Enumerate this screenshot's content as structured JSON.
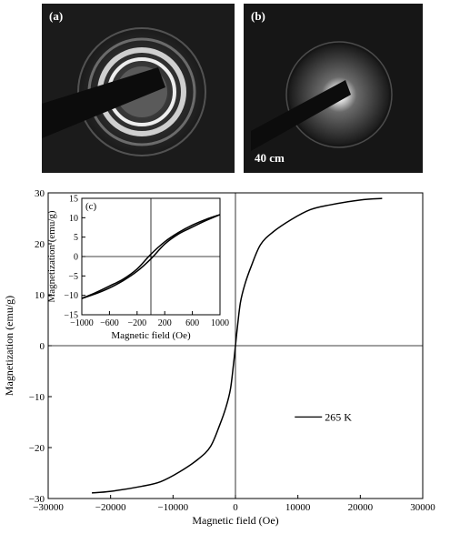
{
  "panels": {
    "a": {
      "label": "(a)"
    },
    "b": {
      "label": "(b)",
      "scale_text": "40 cm"
    }
  },
  "chart_data": [
    {
      "type": "line",
      "panel_label": "",
      "xlabel": "Magnetic field (Oe)",
      "ylabel": "Magnetization (emu/g)",
      "xlim": [
        -30000,
        30000
      ],
      "ylim": [
        -30,
        30
      ],
      "xticks": [
        -30000,
        -20000,
        -10000,
        0,
        10000,
        20000,
        30000
      ],
      "yticks": [
        -30,
        -20,
        -10,
        0,
        10,
        20,
        30
      ],
      "xtick_labels": [
        "−30000",
        "−20000",
        "−10000",
        "0",
        "10000",
        "20000",
        "30000"
      ],
      "ytick_labels": [
        "−30",
        "−20",
        "−10",
        "0",
        "10",
        "20",
        "30"
      ],
      "legend": {
        "label": "265 K",
        "placement": "right"
      },
      "series": [
        {
          "name": "265 K",
          "x": [
            -23000,
            -20000,
            -15000,
            -12000,
            -9000,
            -6000,
            -4000,
            -2500,
            -1500,
            -800,
            -300,
            0,
            300,
            800,
            1500,
            2500,
            4000,
            6000,
            9000,
            12000,
            15000,
            20000,
            23500
          ],
          "y": [
            -28.9,
            -28.6,
            -27.6,
            -26.7,
            -24.8,
            -22.3,
            -19.8,
            -15.5,
            -12.0,
            -8.5,
            -3.5,
            0,
            3.5,
            8.5,
            12.0,
            15.5,
            19.8,
            22.3,
            24.8,
            26.7,
            27.6,
            28.6,
            28.9
          ]
        }
      ]
    },
    {
      "type": "line",
      "panel_label": "(c)",
      "xlabel": "Magnetic field (Oe)",
      "ylabel": "Magnetization (emu/g)",
      "xlim": [
        -1000,
        1000
      ],
      "ylim": [
        -15,
        15
      ],
      "xticks": [
        -1000,
        -600,
        -200,
        200,
        600,
        1000
      ],
      "yticks": [
        -15,
        -10,
        -5,
        0,
        5,
        10,
        15
      ],
      "xtick_labels": [
        "−1000",
        "−600",
        "−200",
        "200",
        "600",
        "1000"
      ],
      "ytick_labels": [
        "−15",
        "−10",
        "−5",
        "0",
        "5",
        "10",
        "15"
      ],
      "series": [
        {
          "name": "",
          "x": [
            -1000,
            -800,
            -600,
            -400,
            -200,
            0,
            200,
            400,
            600,
            800,
            1000
          ],
          "y": [
            -10.8,
            -9.6,
            -8.1,
            -6.2,
            -3.8,
            -0.6,
            3.2,
            5.8,
            7.6,
            9.3,
            10.8
          ]
        },
        {
          "name": "",
          "x": [
            -1000,
            -800,
            -600,
            -400,
            -200,
            0,
            200,
            400,
            600,
            800,
            1000
          ],
          "y": [
            -10.8,
            -9.3,
            -7.6,
            -5.8,
            -3.2,
            0.6,
            3.8,
            6.2,
            8.1,
            9.6,
            10.8
          ]
        }
      ]
    }
  ]
}
